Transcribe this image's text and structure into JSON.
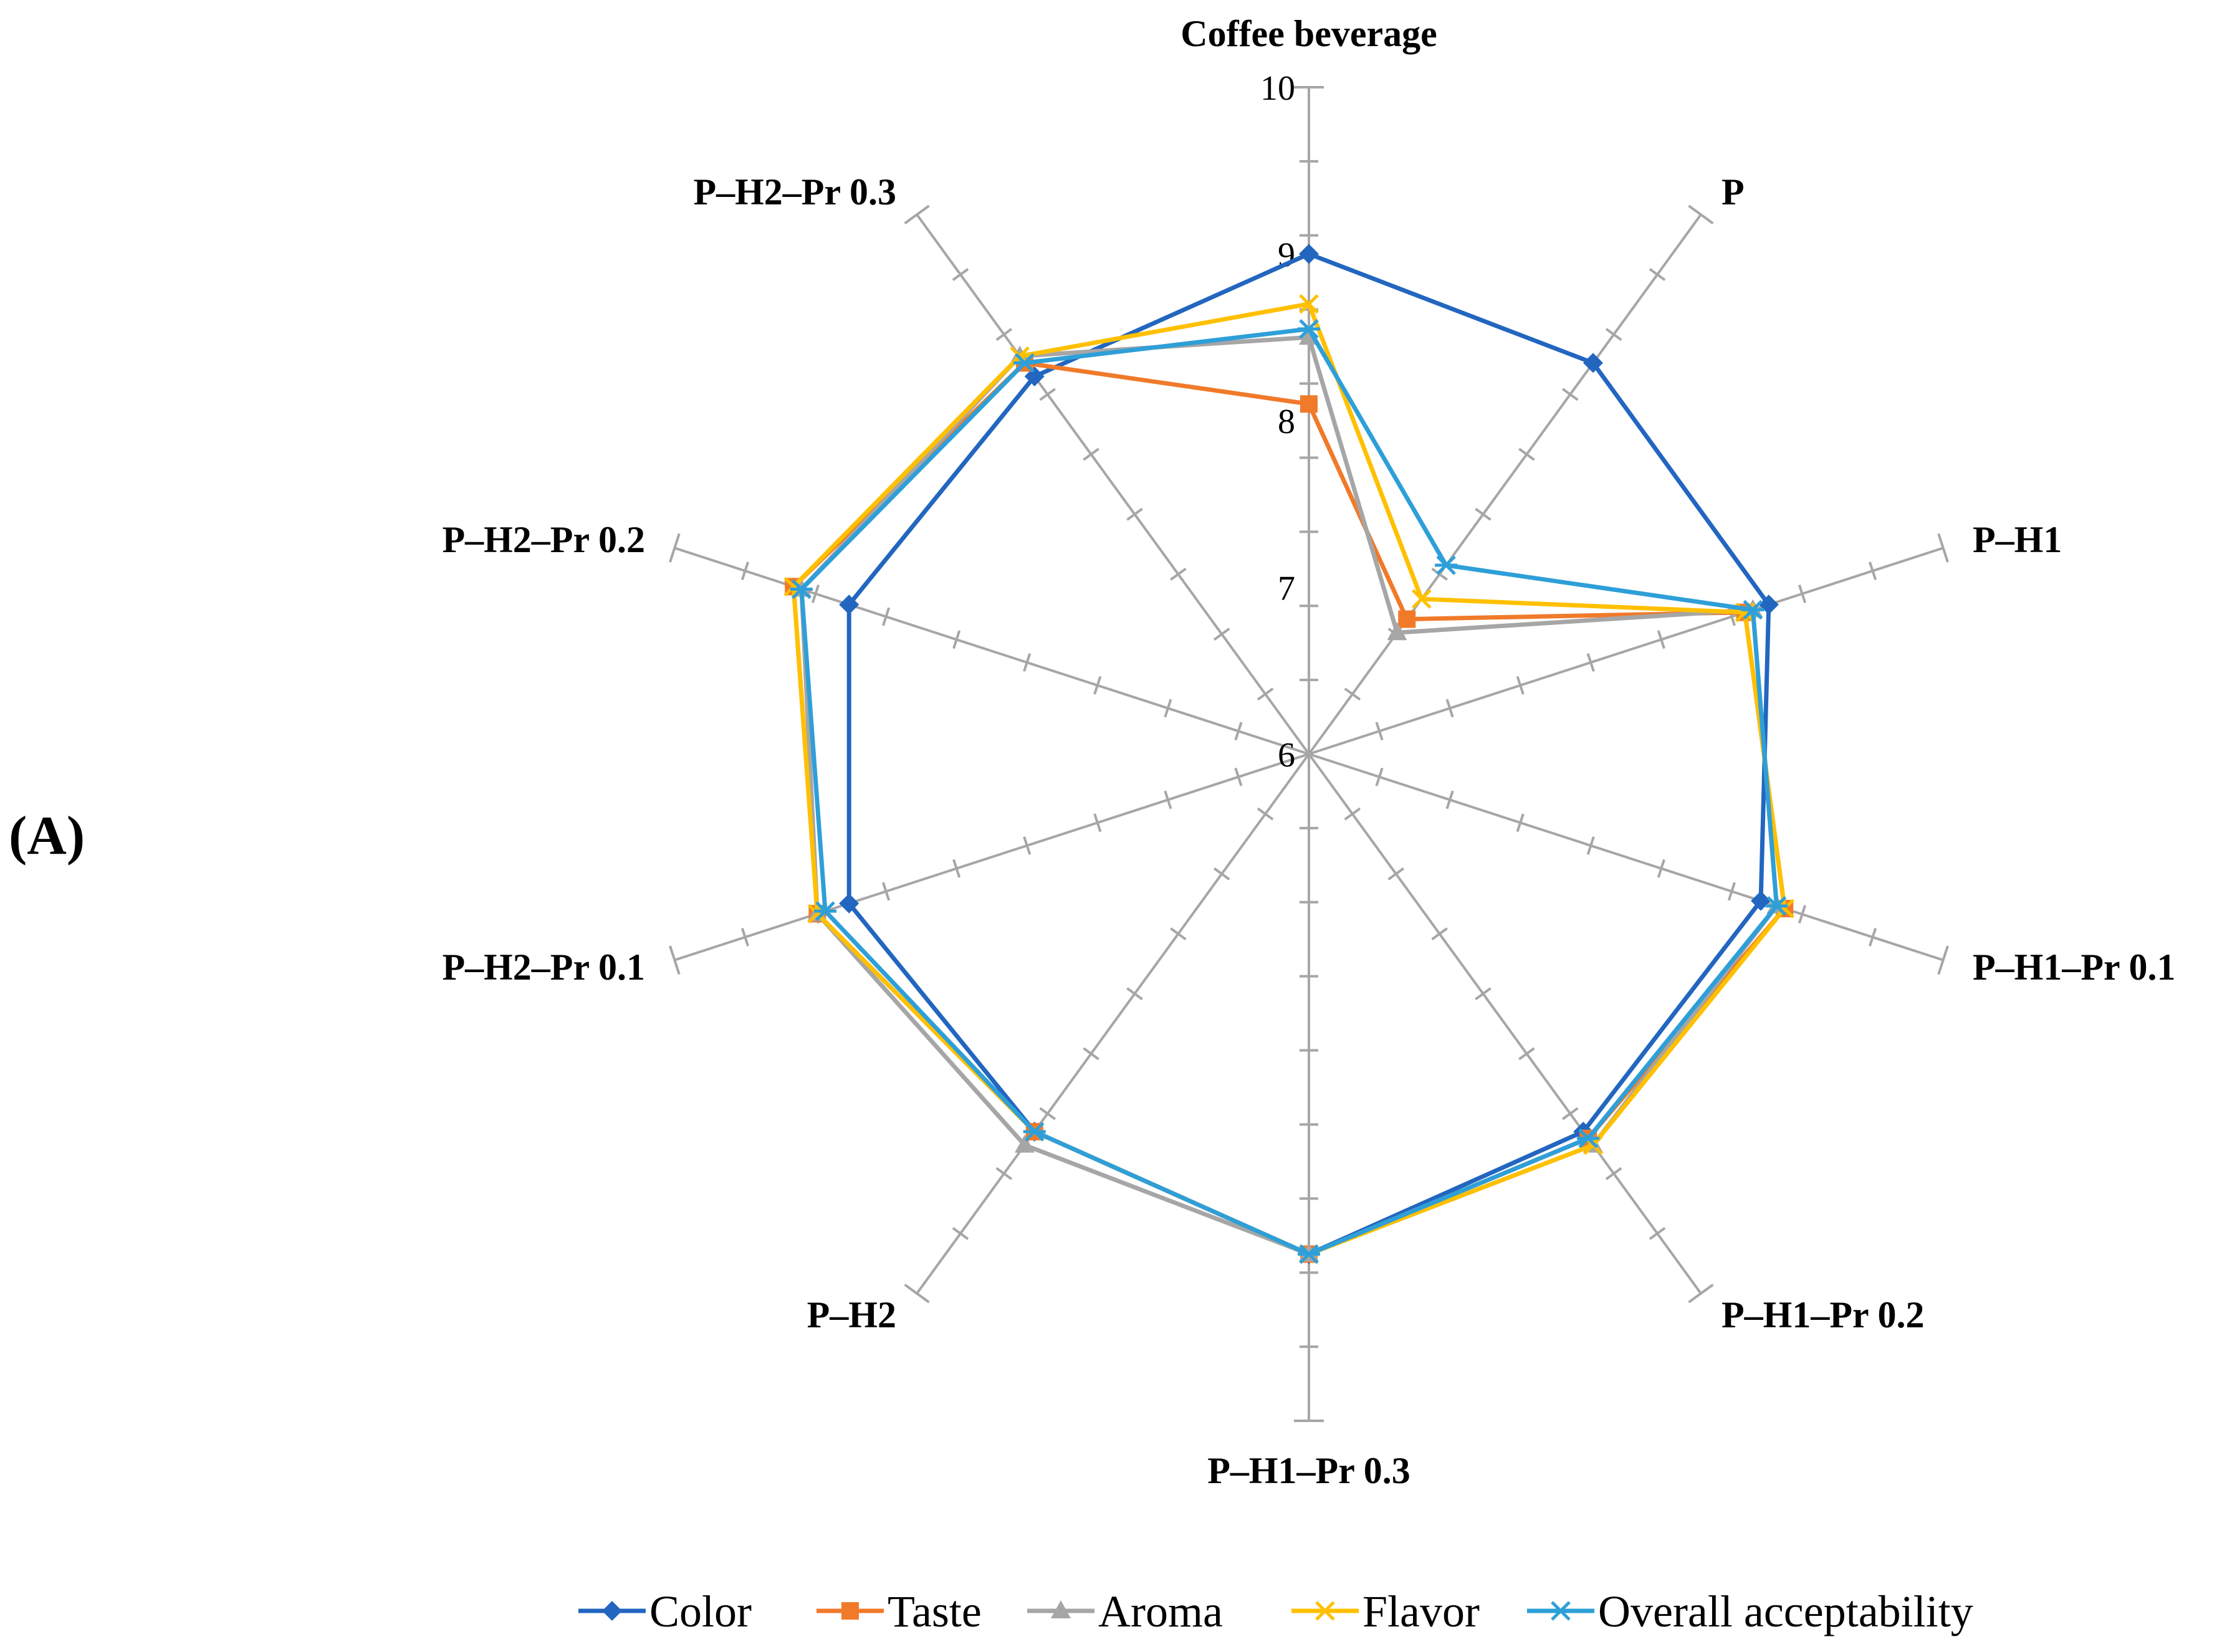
{
  "panel_label": "(A)",
  "chart_data": {
    "type": "radar",
    "categories": [
      "Coffee beverage",
      "P",
      "P–H1",
      "P–H1–Pr 0.1",
      "P–H1–Pr 0.2",
      "P–H1–Pr 0.3",
      "P–H2",
      "P–H2–Pr 0.1",
      "P–H2–Pr 0.2",
      "P–H2–Pr 0.3"
    ],
    "ticks": [
      "6",
      "7",
      "8",
      "9",
      "10"
    ],
    "rlim": [
      6,
      10
    ],
    "legend_position": "bottom",
    "series": [
      {
        "name": "Color",
        "color": "#2266c0",
        "marker": "diamond",
        "values": [
          9.0,
          8.9,
          8.9,
          8.85,
          8.8,
          9.0,
          8.8,
          8.9,
          8.9,
          8.8
        ]
      },
      {
        "name": "Taste",
        "color": "#f07a2a",
        "marker": "square",
        "values": [
          8.1,
          7.0,
          8.75,
          9.0,
          8.85,
          9.0,
          8.8,
          9.1,
          9.25,
          8.9
        ]
      },
      {
        "name": "Aroma",
        "color": "#a6a6a6",
        "marker": "triangle",
        "values": [
          8.5,
          6.9,
          8.8,
          8.95,
          8.9,
          9.0,
          8.9,
          9.1,
          9.2,
          8.95
        ]
      },
      {
        "name": "Flavor",
        "color": "#ffc000",
        "marker": "x",
        "values": [
          8.7,
          7.15,
          8.75,
          9.0,
          8.9,
          9.0,
          8.8,
          9.1,
          9.25,
          8.95
        ]
      },
      {
        "name": "Overall acceptability",
        "color": "#2e9fd8",
        "marker": "star",
        "values": [
          8.55,
          7.4,
          8.8,
          8.95,
          8.85,
          9.0,
          8.8,
          9.05,
          9.2,
          8.9
        ]
      }
    ]
  }
}
